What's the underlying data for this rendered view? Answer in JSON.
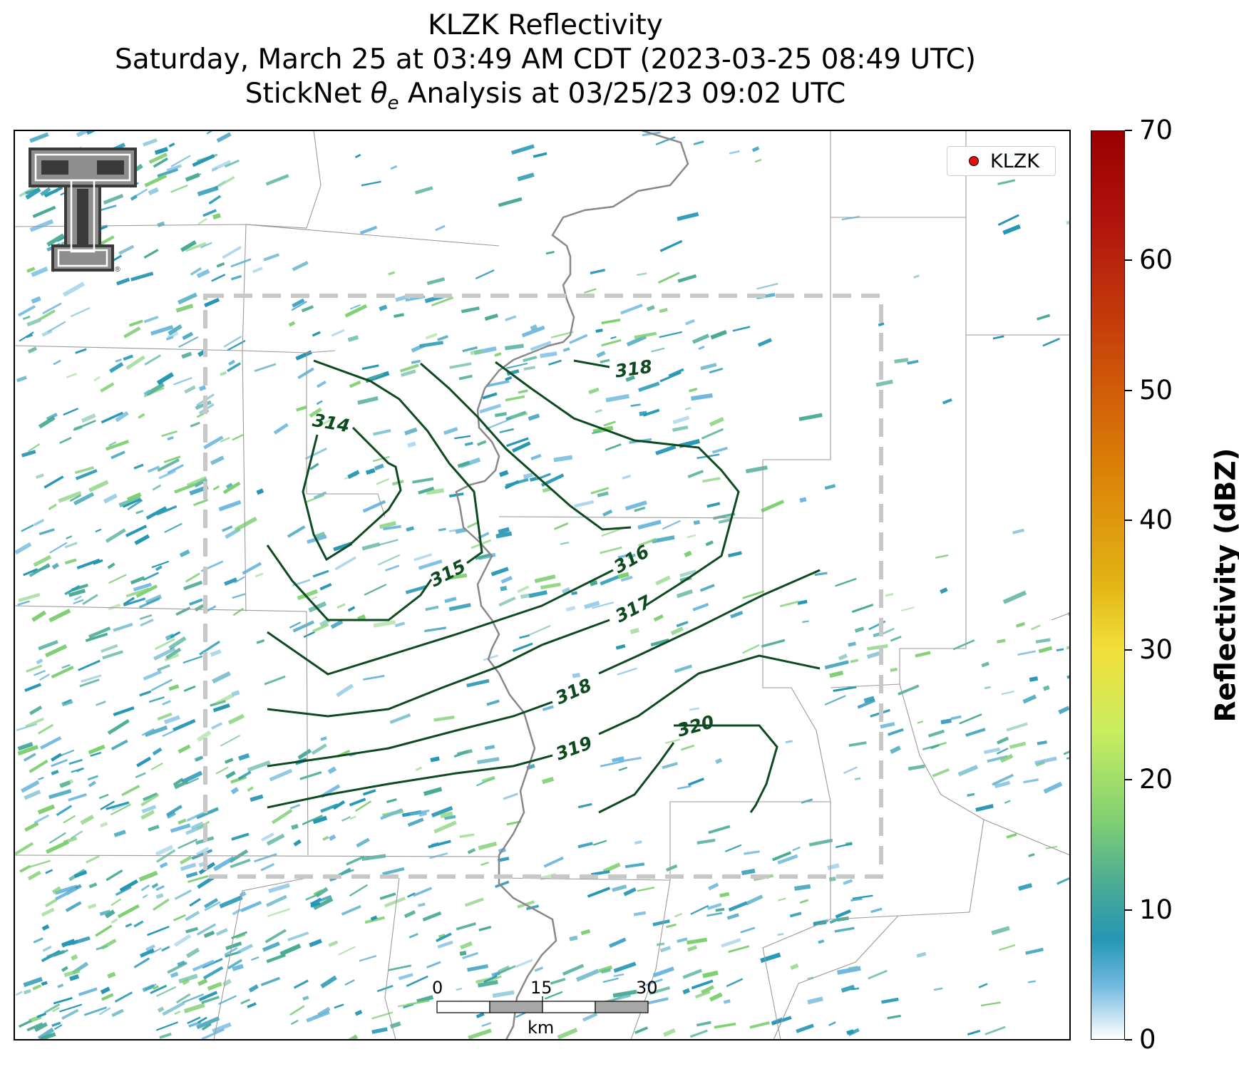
{
  "title": {
    "line1": "KLZK Reflectivity",
    "line2": "Saturday, March 25 at 03:49 AM CDT (2023-03-25 08:49 UTC)",
    "line3_prefix": "StickNet ",
    "line3_symbol": "θ",
    "line3_subscript": "e",
    "line3_suffix": " Analysis at 03/25/23 09:02 UTC"
  },
  "legend": {
    "label": "KLZK",
    "marker_color": "#e01010"
  },
  "scalebar": {
    "ticks": [
      "0",
      "15",
      "30"
    ],
    "unit": "km"
  },
  "colorbar": {
    "label": "Reflectivity (dBZ)",
    "ticks": [
      "0",
      "10",
      "20",
      "30",
      "40",
      "50",
      "60",
      "70"
    ],
    "min": 0,
    "max": 70
  },
  "contours": {
    "color": "#0d4a20",
    "labels": [
      "314",
      "315",
      "316",
      "317",
      "318",
      "318",
      "319",
      "320"
    ]
  },
  "colors": {
    "echo_primary": "#2596b4",
    "echo_secondary": "#4aab95",
    "echo_light": "#6fb8df",
    "analysis_box": "#c8c8c8",
    "boundary_thin": "#9a9a9a",
    "river": "#888888"
  }
}
